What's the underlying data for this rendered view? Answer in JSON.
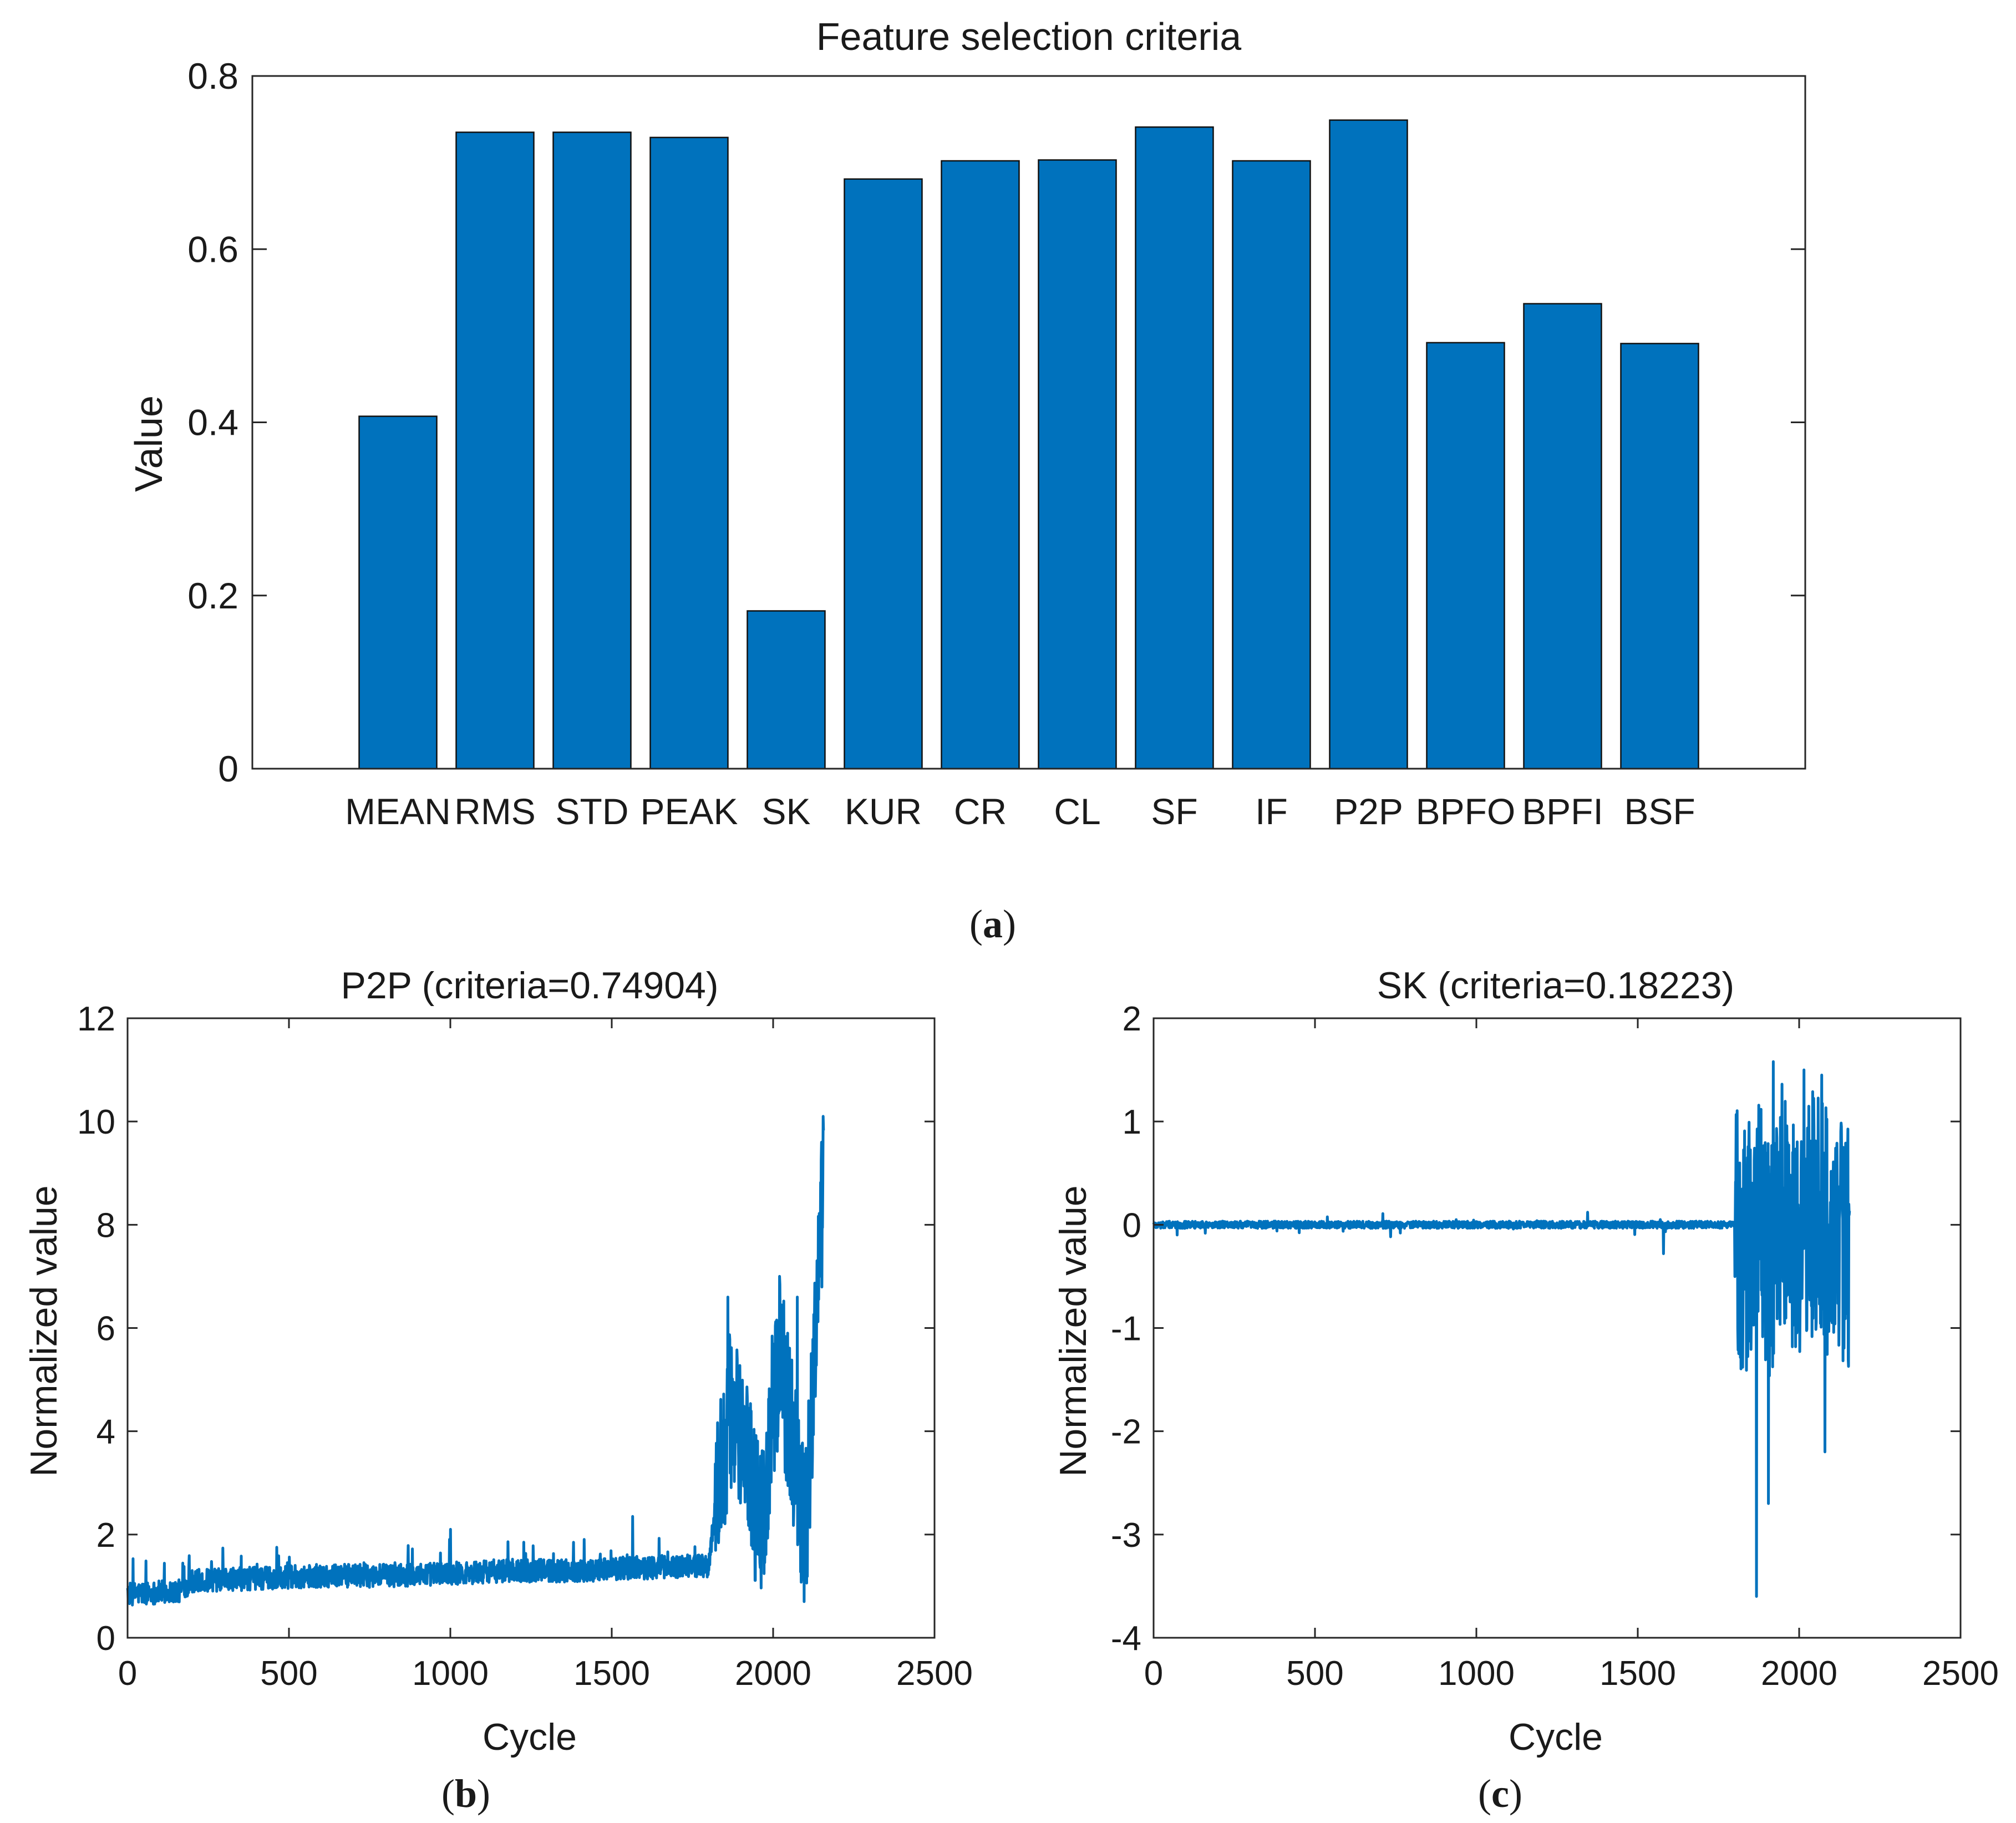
{
  "chart_data": [
    {
      "id": "a",
      "type": "bar",
      "title": "Feature selection criteria",
      "xlabel": "",
      "ylabel": "Value",
      "categories": [
        "MEAN",
        "RMS",
        "STD",
        "PEAK",
        "SK",
        "KUR",
        "CR",
        "CL",
        "SF",
        "IF",
        "P2P",
        "BPFO",
        "BPFI",
        "BSF"
      ],
      "values": [
        0.407,
        0.735,
        0.735,
        0.729,
        0.18223,
        0.681,
        0.702,
        0.703,
        0.741,
        0.702,
        0.74904,
        0.492,
        0.537,
        0.491
      ],
      "ylim": [
        0,
        0.8
      ],
      "yticks": [
        "0",
        "0.2",
        "0.4",
        "0.6",
        "0.8"
      ],
      "bar_color": "#0072bd",
      "grid": false,
      "caption": "a"
    },
    {
      "id": "b",
      "type": "line",
      "title": "P2P (criteria=0.74904)",
      "xlabel": "Cycle",
      "ylabel": "Normalized value",
      "xlim": [
        0,
        2500
      ],
      "ylim": [
        0,
        12
      ],
      "xticks": [
        "0",
        "500",
        "1000",
        "1500",
        "2000",
        "2500"
      ],
      "yticks": [
        "0",
        "2",
        "4",
        "6",
        "8",
        "10",
        "12"
      ],
      "n_points": 2156,
      "series": [
        {
          "name": "P2P",
          "color": "#0072bd",
          "x": [
            0,
            160,
            200,
            400,
            600,
            800,
            1000,
            1200,
            1400,
            1550,
            1800,
            1830,
            1870,
            1920,
            1960,
            2000,
            2020,
            2060,
            2100,
            2130,
            2150,
            2156
          ],
          "y": [
            0.85,
            0.9,
            1.1,
            1.15,
            1.2,
            1.2,
            1.25,
            1.3,
            1.3,
            1.35,
            1.4,
            3.0,
            4.5,
            3.3,
            2.0,
            4.5,
            5.5,
            3.8,
            2.0,
            5.5,
            8.0,
            10.1
          ],
          "peaks": [
            [
              1000,
              2.1
            ],
            [
              1565,
              2.35
            ],
            [
              1860,
              6.6
            ],
            [
              2020,
              7.0
            ],
            [
              2075,
              6.6
            ],
            [
              2155,
              10.1
            ]
          ]
        }
      ],
      "grid": false,
      "caption": "b"
    },
    {
      "id": "c",
      "type": "line",
      "title": "SK (criteria=0.18223)",
      "xlabel": "Cycle",
      "ylabel": "Normalized value",
      "xlim": [
        0,
        2500
      ],
      "ylim": [
        -4,
        2
      ],
      "xticks": [
        "0",
        "500",
        "1000",
        "1500",
        "2000",
        "2500"
      ],
      "yticks": [
        "-4",
        "-3",
        "-2",
        "-1",
        "0",
        "1",
        "2"
      ],
      "n_points": 2156,
      "series": [
        {
          "name": "SK",
          "color": "#0072bd",
          "x": [
            0,
            500,
            1000,
            1500,
            1800,
            1830,
            1870,
            1910,
            1950,
            2000,
            2050,
            2100,
            2156
          ],
          "y": [
            0.0,
            0.0,
            0.0,
            0.0,
            0.0,
            -0.3,
            0.2,
            -0.4,
            0.3,
            -0.3,
            0.2,
            -0.2,
            -0.2
          ],
          "peaks": [
            [
              1580,
              -0.28
            ],
            [
              1868,
              -3.6
            ],
            [
              1920,
              1.58
            ],
            [
              1905,
              -2.7
            ],
            [
              2070,
              1.45
            ],
            [
              2080,
              -2.2
            ],
            [
              2015,
              1.5
            ],
            [
              2150,
              0.65
            ]
          ]
        }
      ],
      "grid": false,
      "caption": "c"
    }
  ]
}
